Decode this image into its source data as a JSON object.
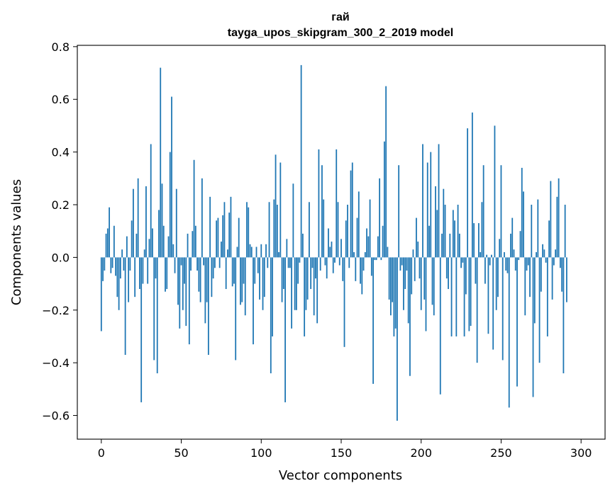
{
  "chart_data": {
    "type": "bar",
    "title_line1": "гай",
    "title_line2": "tayga_upos_skipgram_300_2_2019 model",
    "xlabel": "Vector components",
    "ylabel": "Components values",
    "xlim": [
      -15,
      315
    ],
    "ylim": [
      -0.69,
      0.805
    ],
    "x_ticks": [
      0,
      50,
      100,
      150,
      200,
      250,
      300
    ],
    "x_tick_labels": [
      "0",
      "50",
      "100",
      "150",
      "200",
      "250",
      "300"
    ],
    "y_ticks": [
      -0.6,
      -0.4,
      -0.2,
      0.0,
      0.2,
      0.4,
      0.6,
      0.8
    ],
    "y_tick_labels": [
      "−0.6",
      "−0.4",
      "−0.2",
      "0.0",
      "0.2",
      "0.4",
      "0.6",
      "0.8"
    ],
    "bar_color": "#1f77b4",
    "grid": false,
    "values": [
      -0.28,
      -0.09,
      -0.05,
      0.09,
      0.11,
      0.19,
      -0.06,
      -0.04,
      0.12,
      -0.07,
      -0.15,
      -0.2,
      -0.08,
      0.03,
      -0.05,
      -0.37,
      0.08,
      -0.17,
      -0.05,
      0.14,
      0.26,
      -0.15,
      0.09,
      0.3,
      -0.12,
      -0.55,
      -0.1,
      0.03,
      0.27,
      -0.1,
      0.07,
      0.43,
      0.11,
      -0.39,
      -0.08,
      -0.44,
      0.18,
      0.72,
      0.28,
      0.12,
      -0.13,
      -0.12,
      0.08,
      0.4,
      0.61,
      0.05,
      -0.06,
      0.26,
      -0.18,
      -0.27,
      -0.03,
      -0.2,
      -0.1,
      -0.26,
      0.09,
      -0.33,
      -0.05,
      0.1,
      0.37,
      0.12,
      -0.05,
      -0.13,
      -0.17,
      0.3,
      -0.03,
      -0.25,
      -0.17,
      -0.37,
      0.23,
      -0.15,
      -0.08,
      -0.04,
      0.14,
      0.15,
      -0.04,
      0.06,
      0.16,
      0.21,
      -0.12,
      0.03,
      0.17,
      0.23,
      -0.11,
      -0.1,
      -0.39,
      0.04,
      0.15,
      -0.18,
      -0.17,
      -0.1,
      -0.22,
      0.21,
      0.19,
      0.05,
      0.04,
      -0.33,
      -0.1,
      0.04,
      -0.06,
      -0.16,
      0.05,
      -0.2,
      -0.15,
      0.05,
      -0.04,
      0.21,
      -0.44,
      -0.3,
      0.22,
      0.39,
      0.2,
      0.02,
      0.36,
      -0.17,
      -0.12,
      -0.55,
      0.07,
      -0.04,
      -0.04,
      -0.27,
      0.28,
      -0.2,
      -0.2,
      -0.1,
      -0.02,
      0.73,
      0.09,
      -0.3,
      -0.2,
      -0.16,
      0.21,
      -0.12,
      -0.04,
      -0.22,
      -0.08,
      -0.25,
      0.41,
      -0.05,
      0.35,
      0.22,
      -0.03,
      -0.08,
      0.11,
      0.04,
      0.06,
      -0.06,
      -0.02,
      0.41,
      0.21,
      -0.03,
      0.07,
      -0.09,
      -0.34,
      0.14,
      0.2,
      -0.04,
      0.33,
      0.36,
      0.02,
      -0.09,
      0.15,
      0.25,
      -0.1,
      -0.14,
      -0.05,
      0.02,
      0.11,
      0.08,
      0.22,
      -0.07,
      -0.48,
      -0.01,
      -0.01,
      0.08,
      0.3,
      -0.01,
      0.12,
      0.44,
      0.65,
      0.04,
      -0.16,
      -0.22,
      -0.17,
      -0.3,
      -0.27,
      -0.62,
      0.35,
      -0.05,
      -0.03,
      -0.2,
      -0.12,
      -0.05,
      -0.25,
      -0.45,
      -0.14,
      0.03,
      -0.09,
      0.15,
      0.06,
      -0.08,
      -0.2,
      0.43,
      -0.16,
      -0.28,
      0.36,
      0.12,
      0.4,
      -0.18,
      -0.22,
      0.27,
      0.18,
      0.43,
      -0.52,
      0.09,
      0.26,
      0.2,
      -0.08,
      -0.12,
      0.09,
      -0.3,
      0.18,
      0.14,
      -0.3,
      0.2,
      0.09,
      -0.04,
      -0.02,
      -0.3,
      -0.14,
      0.49,
      -0.28,
      -0.26,
      0.55,
      0.13,
      -0.1,
      -0.4,
      0.13,
      0.02,
      0.21,
      0.35,
      -0.1,
      0.01,
      -0.29,
      -0.03,
      0.01,
      -0.35,
      0.5,
      -0.2,
      -0.15,
      0.07,
      0.35,
      -0.39,
      0.02,
      -0.05,
      -0.06,
      -0.57,
      0.09,
      0.15,
      0.03,
      -0.05,
      -0.49,
      -0.01,
      0.1,
      0.34,
      0.25,
      -0.22,
      -0.05,
      -0.03,
      -0.15,
      0.2,
      -0.53,
      -0.25,
      0.02,
      0.22,
      -0.4,
      -0.13,
      0.05,
      0.03,
      -0.02,
      -0.3,
      0.14,
      0.29,
      -0.16,
      -0.03,
      0.03,
      0.23,
      0.3,
      -0.04,
      -0.13,
      -0.44,
      0.2,
      -0.17
    ]
  }
}
